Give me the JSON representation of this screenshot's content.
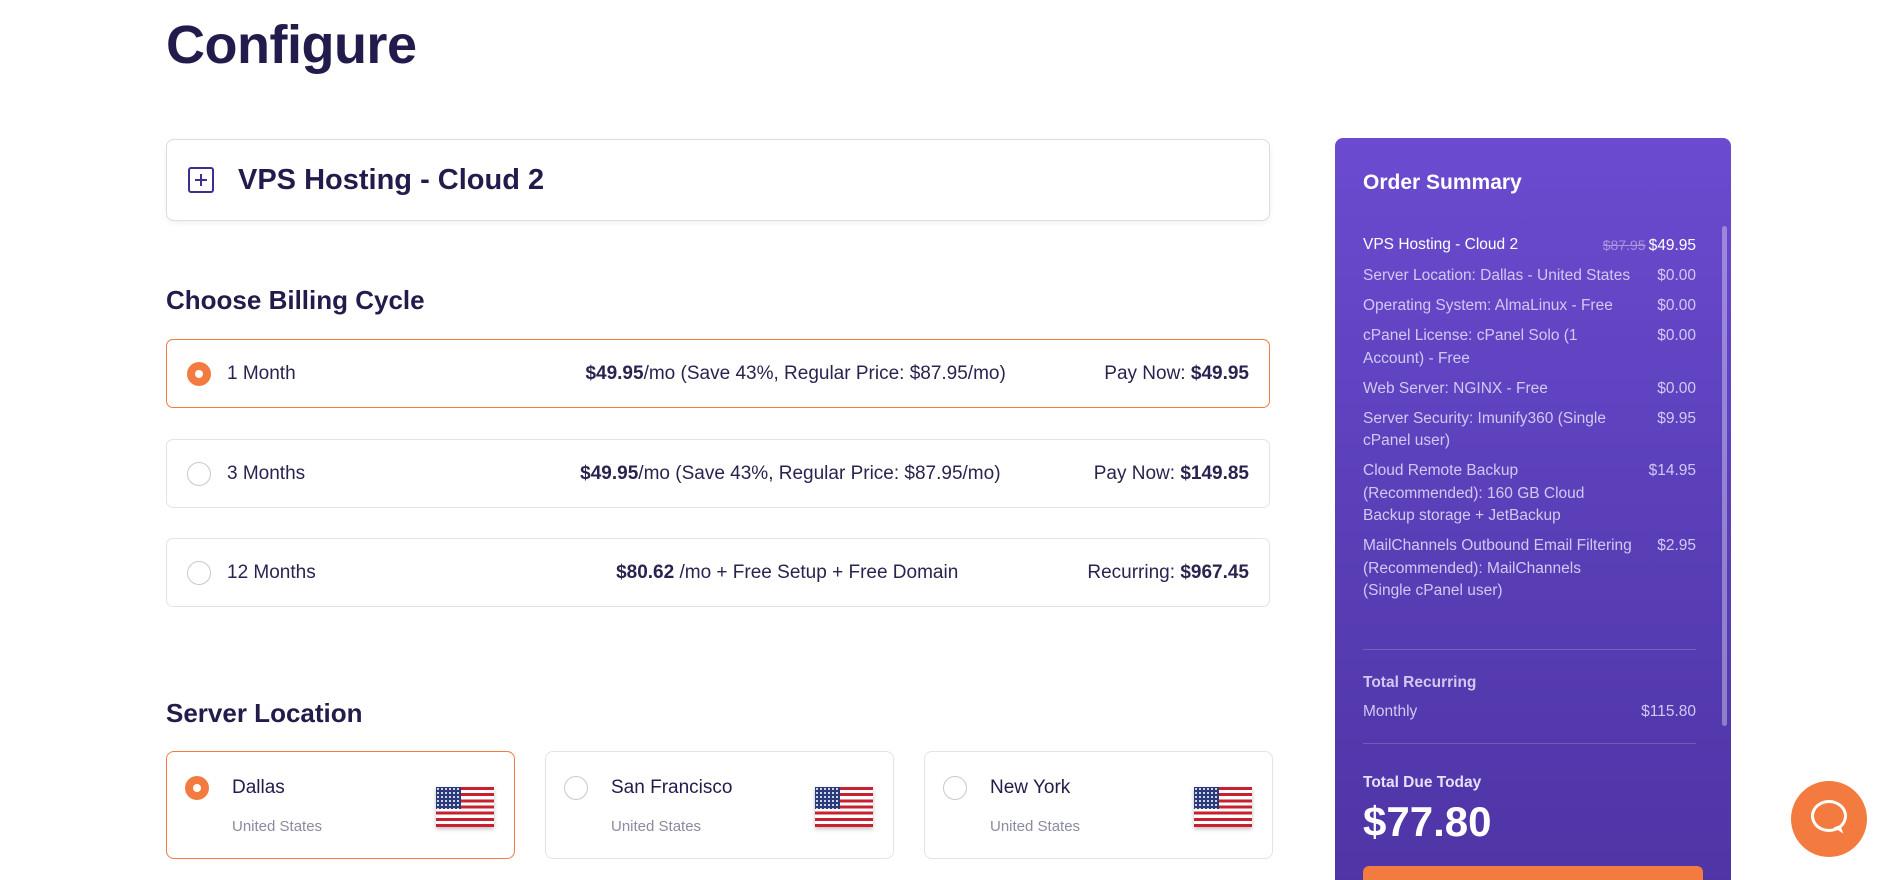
{
  "page": {
    "title": "Configure"
  },
  "product": {
    "name": "VPS Hosting - Cloud 2"
  },
  "billing": {
    "title": "Choose Billing Cycle",
    "options": [
      {
        "label": "1 Month",
        "price": "$49.95",
        "desc": "/mo (Save 43%, Regular Price: $87.95/mo)",
        "pay_label": "Pay Now:",
        "pay_value": "$49.95",
        "selected": true
      },
      {
        "label": "3 Months",
        "price": "$49.95",
        "desc": "/mo (Save 43%, Regular Price: $87.95/mo)",
        "pay_label": "Pay Now:",
        "pay_value": "$149.85",
        "selected": false
      },
      {
        "label": "12 Months",
        "price": "$80.62",
        "desc": "/mo + Free Setup + Free Domain",
        "pay_label": "Recurring:",
        "pay_value": "$967.45",
        "selected": false
      }
    ]
  },
  "location": {
    "title": "Server Location",
    "options": [
      {
        "name": "Dallas",
        "country": "United States",
        "selected": true
      },
      {
        "name": "San Francisco",
        "country": "United States",
        "selected": false
      },
      {
        "name": "New York",
        "country": "United States",
        "selected": false
      }
    ]
  },
  "summary": {
    "title": "Order Summary",
    "product_label": "VPS Hosting - Cloud 2",
    "product_old_price": "$87.95",
    "product_price": "$49.95",
    "lines": [
      {
        "label": "Server Location: Dallas - United States",
        "value": "$0.00"
      },
      {
        "label": "Operating System: AlmaLinux - Free",
        "value": "$0.00"
      },
      {
        "label": "cPanel License: cPanel Solo (1 Account) - Free",
        "value": "$0.00"
      },
      {
        "label": "Web Server: NGINX - Free",
        "value": "$0.00"
      },
      {
        "label": "Server Security: Imunify360 (Single cPanel user)",
        "value": "$9.95"
      },
      {
        "label": "Cloud Remote Backup (Recommended): 160 GB Cloud Backup storage + JetBackup",
        "value": "$14.95"
      },
      {
        "label": "MailChannels Outbound Email Filtering (Recommended): MailChannels (Single cPanel user)",
        "value": "$2.95"
      }
    ],
    "total_recurring_label": "Total Recurring",
    "monthly_label": "Monthly",
    "monthly_value": "$115.80",
    "due_today_label": "Total Due Today",
    "due_today_value": "$77.80"
  },
  "colors": {
    "accent": "#f47b3f",
    "summary_bg": "#5a3fb8",
    "heading": "#221c4c"
  },
  "icons": {
    "expand": "plus-square-icon",
    "flag": "us-flag-icon",
    "chat": "chat-icon"
  }
}
